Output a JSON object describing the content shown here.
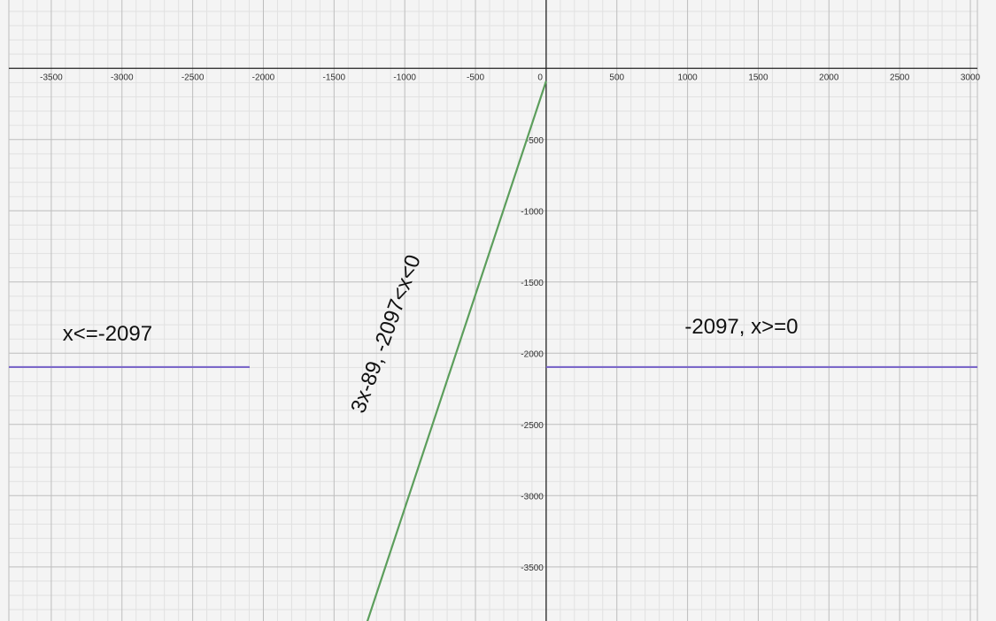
{
  "chart_data": {
    "type": "line",
    "title": "",
    "xlabel": "",
    "ylabel": "",
    "xlim": [
      -3800,
      3050
    ],
    "ylim": [
      -3880,
      480
    ],
    "grid": true,
    "x_ticks": [
      -3500,
      -3000,
      -2500,
      -2000,
      -1500,
      -1000,
      -500,
      0,
      500,
      1000,
      1500,
      2000,
      2500,
      3000
    ],
    "x_tick_labels": [
      "-3500",
      "-3000",
      "-2500",
      "-2000",
      "-1500",
      "-1000",
      "-500",
      "0",
      "500",
      "1000",
      "1500",
      "2000",
      "2500",
      "3000"
    ],
    "y_ticks": [
      -500,
      -1000,
      -1500,
      -2000,
      -2500,
      -3000,
      -3500
    ],
    "y_tick_labels": [
      "-500",
      "-1000",
      "-1500",
      "-2000",
      "-2500",
      "-3000",
      "-3500"
    ],
    "colors": {
      "flat": "#7b68c9",
      "slope": "#5c9e5c",
      "axis": "#222222",
      "grid_major": "#bdbdbd",
      "grid_minor": "#e1e1e1",
      "background": "#f4f4f4"
    },
    "series": [
      {
        "x": [
          -3800,
          -2097
        ],
        "y": [
          -2097,
          -2097
        ],
        "color": "#7b68c9"
      },
      {
        "x": [
          -1271,
          0
        ],
        "y": [
          -3902,
          -89
        ],
        "color": "#5c9e5c"
      },
      {
        "x": [
          0,
          3050
        ],
        "y": [
          -2097,
          -2097
        ],
        "color": "#7b68c9"
      }
    ],
    "annotations": [
      {
        "text": "x<=-2097",
        "x": -3420,
        "y": -1910,
        "rotation": 0
      },
      {
        "text": "-2097, x>=0",
        "x": 980,
        "y": -1860,
        "rotation": 0
      },
      {
        "text": "3x-89, -2097<x<0",
        "x": -1290,
        "y": -2430,
        "rotation": -70
      }
    ]
  }
}
